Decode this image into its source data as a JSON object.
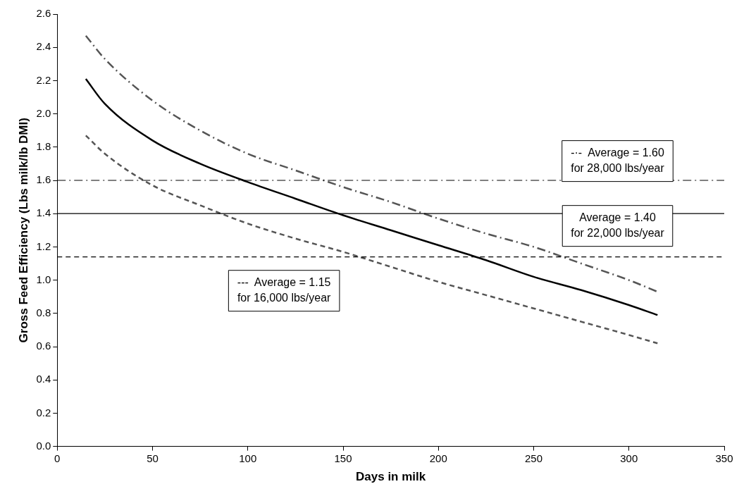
{
  "chart_data": {
    "type": "line",
    "xlabel": "Days in milk",
    "ylabel": "Gross Feed Efficiency (Lbs milk/lb DMI)",
    "x": [
      15,
      25,
      50,
      75,
      100,
      125,
      150,
      175,
      200,
      225,
      250,
      275,
      300,
      315
    ],
    "series": [
      {
        "color": "#555555",
        "line_style": "dashdot",
        "values": [
          2.47,
          2.33,
          2.08,
          1.9,
          1.76,
          1.66,
          1.56,
          1.47,
          1.37,
          1.28,
          1.2,
          1.1,
          1.0,
          0.93
        ]
      },
      {
        "color": "#000000",
        "line_style": "solid",
        "values": [
          2.21,
          2.06,
          1.84,
          1.7,
          1.59,
          1.49,
          1.39,
          1.3,
          1.21,
          1.12,
          1.02,
          0.94,
          0.85,
          0.79
        ]
      },
      {
        "color": "#555555",
        "line_style": "dashed",
        "values": [
          1.87,
          1.76,
          1.57,
          1.45,
          1.34,
          1.25,
          1.17,
          1.08,
          0.99,
          0.91,
          0.83,
          0.75,
          0.67,
          0.62
        ]
      }
    ],
    "ref_lines": [
      {
        "axis": "y",
        "value": 1.6,
        "color": "#000000",
        "line_style": "dashdot"
      },
      {
        "axis": "y",
        "value": 1.4,
        "color": "#000000",
        "line_style": "solid"
      },
      {
        "axis": "y",
        "value": 1.14,
        "color": "#000000",
        "line_style": "dashed"
      }
    ],
    "annotations": [
      "-·-  Average = 1.60\nfor 28,000 lbs/year",
      "Average = 1.40\nfor 22,000 lbs/year",
      "---  Average = 1.15\nfor 16,000 lbs/year"
    ],
    "xlim": [
      0,
      350
    ],
    "xticks": [
      0,
      50,
      100,
      150,
      200,
      250,
      300,
      350
    ],
    "ylim": [
      0,
      2.6
    ],
    "yticks": [
      {
        "value": 0,
        "label": "0.0"
      },
      {
        "value": 0.2,
        "label": "0.2"
      },
      {
        "value": 0.4,
        "label": "0.4"
      },
      {
        "value": 0.6,
        "label": "0.6"
      },
      {
        "value": 0.8,
        "label": "0.8"
      },
      {
        "value": 1,
        "label": "1.0"
      },
      {
        "value": 1.2,
        "label": "1.2"
      },
      {
        "value": 1.4,
        "label": "1.4"
      },
      {
        "value": 1.6,
        "label": "1.6"
      },
      {
        "value": 1.8,
        "label": "1.8"
      },
      {
        "value": 2,
        "label": "2.0"
      },
      {
        "value": 2.2,
        "label": "2.2"
      },
      {
        "value": 2.4,
        "label": "2.4"
      },
      {
        "value": 2.6,
        "label": "2.6"
      }
    ],
    "grid": false,
    "legend": false,
    "marker": "none"
  }
}
